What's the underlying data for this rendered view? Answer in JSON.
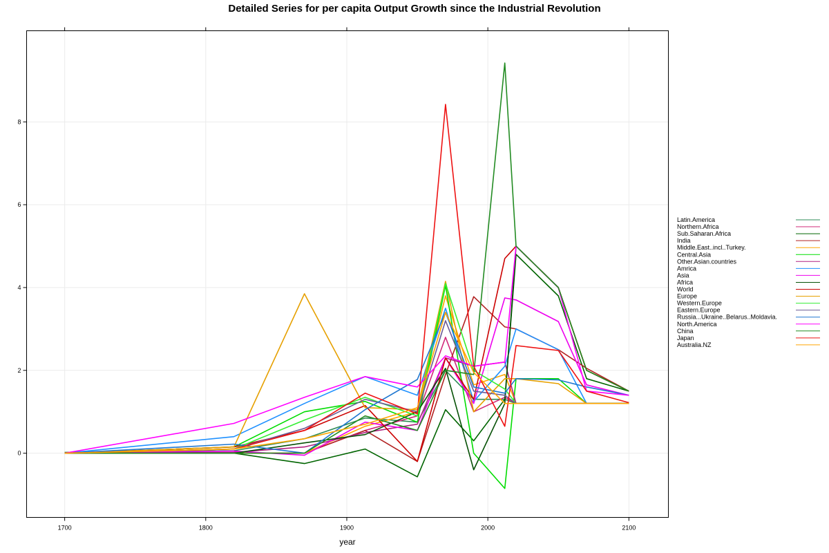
{
  "chart_data": {
    "type": "line",
    "title": "Detailed Series for per capita Output Growth since the Industrial Revolution",
    "xlabel": "year",
    "ylabel": "",
    "xlim": [
      1673,
      2128
    ],
    "ylim": [
      -1.55,
      10.2
    ],
    "x_ticks": [
      1700,
      1800,
      1900,
      2000,
      2100
    ],
    "y_ticks": [
      0,
      2,
      4,
      6,
      8
    ],
    "grid": true,
    "legend_position": "right",
    "series": [
      {
        "name": "Latin.America",
        "color": "#2e8b57",
        "points": [
          [
            1700,
            0.02
          ],
          [
            1820,
            0.06
          ],
          [
            1870,
            0.35
          ],
          [
            1913,
            0.85
          ],
          [
            1950,
            0.75
          ],
          [
            1970,
            2.0
          ],
          [
            1990,
            1.3
          ],
          [
            2012,
            1.3
          ],
          [
            2020,
            1.2
          ],
          [
            2050,
            1.2
          ],
          [
            2070,
            1.2
          ],
          [
            2100,
            1.2
          ]
        ]
      },
      {
        "name": "Northern.Africa",
        "color": "#d1287a",
        "points": [
          [
            1700,
            0.0
          ],
          [
            1820,
            0.0
          ],
          [
            1870,
            0.0
          ],
          [
            1913,
            0.55
          ],
          [
            1950,
            0.9
          ],
          [
            1970,
            2.8
          ],
          [
            1990,
            1.0
          ],
          [
            2012,
            1.35
          ],
          [
            2020,
            1.2
          ],
          [
            2050,
            1.2
          ],
          [
            2070,
            1.2
          ],
          [
            2100,
            1.2
          ]
        ]
      },
      {
        "name": "Sub.Saharan.Africa",
        "color": "#006400",
        "points": [
          [
            1700,
            0.0
          ],
          [
            1820,
            0.0
          ],
          [
            1870,
            -0.25
          ],
          [
            1913,
            0.1
          ],
          [
            1950,
            -0.57
          ],
          [
            1970,
            1.05
          ],
          [
            1990,
            0.3
          ],
          [
            2012,
            1.3
          ],
          [
            2020,
            4.8
          ],
          [
            2050,
            3.8
          ],
          [
            2070,
            1.8
          ],
          [
            2100,
            1.5
          ]
        ]
      },
      {
        "name": "India",
        "color": "#b22222",
        "points": [
          [
            1700,
            0.0
          ],
          [
            1820,
            0.0
          ],
          [
            1870,
            0.0
          ],
          [
            1913,
            0.55
          ],
          [
            1950,
            -0.2
          ],
          [
            1970,
            1.9
          ],
          [
            1990,
            3.78
          ],
          [
            2012,
            3.05
          ],
          [
            2020,
            3.0
          ],
          [
            2050,
            2.5
          ],
          [
            2070,
            2.05
          ],
          [
            2100,
            1.5
          ]
        ]
      },
      {
        "name": "Middle.East..incl..Turkey.",
        "color": "#ffa500",
        "points": [
          [
            1700,
            0.0
          ],
          [
            1820,
            0.0
          ],
          [
            1870,
            0.0
          ],
          [
            1913,
            0.65
          ],
          [
            1950,
            1.0
          ],
          [
            1970,
            3.8
          ],
          [
            1990,
            1.65
          ],
          [
            2012,
            1.9
          ],
          [
            2020,
            1.2
          ],
          [
            2050,
            1.2
          ],
          [
            2070,
            1.2
          ],
          [
            2100,
            1.2
          ]
        ]
      },
      {
        "name": "Central.Asia",
        "color": "#00dd00",
        "points": [
          [
            1700,
            0.0
          ],
          [
            1820,
            0.15
          ],
          [
            1870,
            1.0
          ],
          [
            1913,
            1.25
          ],
          [
            1950,
            0.75
          ],
          [
            1970,
            4.05
          ],
          [
            1990,
            0.0
          ],
          [
            2012,
            -0.85
          ],
          [
            2020,
            1.8
          ],
          [
            2050,
            1.8
          ],
          [
            2070,
            1.2
          ],
          [
            2100,
            1.2
          ]
        ]
      },
      {
        "name": "Other.Asian.countries",
        "color": "#b02080",
        "points": [
          [
            1700,
            0.0
          ],
          [
            1820,
            0.02
          ],
          [
            1870,
            0.15
          ],
          [
            1913,
            0.5
          ],
          [
            1950,
            0.7
          ],
          [
            1970,
            2.3
          ],
          [
            1990,
            2.1
          ],
          [
            2012,
            2.2
          ],
          [
            2020,
            1.2
          ],
          [
            2050,
            1.2
          ],
          [
            2070,
            1.2
          ],
          [
            2100,
            1.2
          ]
        ]
      },
      {
        "name": "Amrica",
        "color": "#1e90ff",
        "points": [
          [
            1700,
            0.0
          ],
          [
            1820,
            0.4
          ],
          [
            1870,
            1.2
          ],
          [
            1913,
            1.85
          ],
          [
            1950,
            1.4
          ],
          [
            1970,
            3.5
          ],
          [
            1990,
            1.25
          ],
          [
            2012,
            2.1
          ],
          [
            2020,
            3.0
          ],
          [
            2050,
            2.5
          ],
          [
            2070,
            1.2
          ],
          [
            2100,
            1.2
          ]
        ]
      },
      {
        "name": "Asia",
        "color": "#ee00ee",
        "points": [
          [
            1700,
            0.0
          ],
          [
            1820,
            0.05
          ],
          [
            1870,
            -0.05
          ],
          [
            1913,
            0.75
          ],
          [
            1950,
            0.55
          ],
          [
            1970,
            2.3
          ],
          [
            1990,
            1.2
          ],
          [
            2012,
            3.75
          ],
          [
            2020,
            3.7
          ],
          [
            2050,
            3.18
          ],
          [
            2070,
            1.65
          ],
          [
            2100,
            1.4
          ]
        ]
      },
      {
        "name": "Africa",
        "color": "#055005",
        "points": [
          [
            1700,
            0.0
          ],
          [
            1820,
            0.0
          ],
          [
            1870,
            0.25
          ],
          [
            1913,
            0.45
          ],
          [
            1950,
            1.0
          ],
          [
            1970,
            2.05
          ],
          [
            1990,
            -0.4
          ],
          [
            2012,
            1.2
          ],
          [
            2020,
            5.0
          ],
          [
            2050,
            4.0
          ],
          [
            2070,
            2.0
          ],
          [
            2100,
            1.5
          ]
        ]
      },
      {
        "name": "World",
        "color": "#cc0000",
        "points": [
          [
            1700,
            0.0
          ],
          [
            1820,
            0.15
          ],
          [
            1870,
            0.55
          ],
          [
            1913,
            1.15
          ],
          [
            1950,
            -0.2
          ],
          [
            1970,
            2.3
          ],
          [
            1990,
            1.3
          ],
          [
            2012,
            4.7
          ],
          [
            2020,
            5.0
          ],
          [
            2050,
            4.0
          ],
          [
            2070,
            2.0
          ],
          [
            2100,
            1.5
          ]
        ]
      },
      {
        "name": "Europe",
        "color": "#e6a000",
        "points": [
          [
            1700,
            0.0
          ],
          [
            1820,
            0.15
          ],
          [
            1870,
            3.85
          ],
          [
            1913,
            1.1
          ],
          [
            1950,
            1.05
          ],
          [
            1970,
            4.15
          ],
          [
            1990,
            1.0
          ],
          [
            2012,
            1.8
          ],
          [
            2020,
            1.8
          ],
          [
            2050,
            1.68
          ],
          [
            2070,
            1.2
          ],
          [
            2100,
            1.2
          ]
        ]
      },
      {
        "name": "Western.Europe",
        "color": "#33ee33",
        "points": [
          [
            1700,
            0.0
          ],
          [
            1820,
            0.1
          ],
          [
            1870,
            0.8
          ],
          [
            1913,
            1.35
          ],
          [
            1950,
            0.9
          ],
          [
            1970,
            4.1
          ],
          [
            1990,
            2.0
          ],
          [
            2012,
            1.55
          ],
          [
            2020,
            1.2
          ],
          [
            2050,
            1.2
          ],
          [
            2070,
            1.2
          ],
          [
            2100,
            1.2
          ]
        ]
      },
      {
        "name": "Eastern.Europe",
        "color": "#6b5b95",
        "points": [
          [
            1700,
            0.0
          ],
          [
            1820,
            0.1
          ],
          [
            1870,
            0.6
          ],
          [
            1913,
            1.3
          ],
          [
            1950,
            1.0
          ],
          [
            1970,
            3.2
          ],
          [
            1990,
            1.5
          ],
          [
            2012,
            1.4
          ],
          [
            2020,
            1.2
          ],
          [
            2050,
            1.2
          ],
          [
            2070,
            1.2
          ],
          [
            2100,
            1.2
          ]
        ]
      },
      {
        "name": "Russia...Ukraine..Belarus..Moldavia.",
        "color": "#1f77d0",
        "points": [
          [
            1700,
            0.0
          ],
          [
            1820,
            0.22
          ],
          [
            1870,
            0.0
          ],
          [
            1913,
            1.05
          ],
          [
            1950,
            1.78
          ],
          [
            1970,
            3.4
          ],
          [
            1990,
            1.6
          ],
          [
            2012,
            1.45
          ],
          [
            2020,
            1.8
          ],
          [
            2050,
            1.77
          ],
          [
            2070,
            1.6
          ],
          [
            2100,
            1.4
          ]
        ]
      },
      {
        "name": "North.America",
        "color": "#ff00ff",
        "points": [
          [
            1700,
            0.0
          ],
          [
            1820,
            0.72
          ],
          [
            1870,
            1.35
          ],
          [
            1913,
            1.85
          ],
          [
            1950,
            1.6
          ],
          [
            1970,
            2.35
          ],
          [
            1990,
            2.1
          ],
          [
            2012,
            2.2
          ],
          [
            2020,
            5.0
          ],
          [
            2050,
            4.0
          ],
          [
            2070,
            1.5
          ],
          [
            2100,
            1.4
          ]
        ]
      },
      {
        "name": "China",
        "color": "#228b22",
        "points": [
          [
            1700,
            0.0
          ],
          [
            1820,
            0.0
          ],
          [
            1870,
            0.0
          ],
          [
            1913,
            0.9
          ],
          [
            1950,
            0.55
          ],
          [
            1970,
            2.0
          ],
          [
            1990,
            1.9
          ],
          [
            2012,
            9.42
          ],
          [
            2020,
            5.0
          ],
          [
            2050,
            4.0
          ],
          [
            2070,
            2.0
          ],
          [
            2100,
            1.5
          ]
        ]
      },
      {
        "name": "Japan",
        "color": "#ee1111",
        "points": [
          [
            1700,
            0.0
          ],
          [
            1820,
            0.1
          ],
          [
            1870,
            0.55
          ],
          [
            1913,
            1.45
          ],
          [
            1950,
            0.95
          ],
          [
            1970,
            8.42
          ],
          [
            1990,
            2.1
          ],
          [
            2012,
            0.65
          ],
          [
            2020,
            2.6
          ],
          [
            2050,
            2.48
          ],
          [
            2070,
            1.5
          ],
          [
            2100,
            1.22
          ]
        ]
      },
      {
        "name": "Australia.NZ",
        "color": "#ffa500",
        "points": [
          [
            1700,
            0.0
          ],
          [
            1820,
            0.1
          ],
          [
            1870,
            0.35
          ],
          [
            1913,
            0.7
          ],
          [
            1950,
            1.1
          ],
          [
            1970,
            3.4
          ],
          [
            1990,
            1.95
          ],
          [
            2012,
            1.2
          ],
          [
            2020,
            1.2
          ],
          [
            2050,
            1.2
          ],
          [
            2070,
            1.2
          ],
          [
            2100,
            1.2
          ]
        ]
      }
    ]
  }
}
